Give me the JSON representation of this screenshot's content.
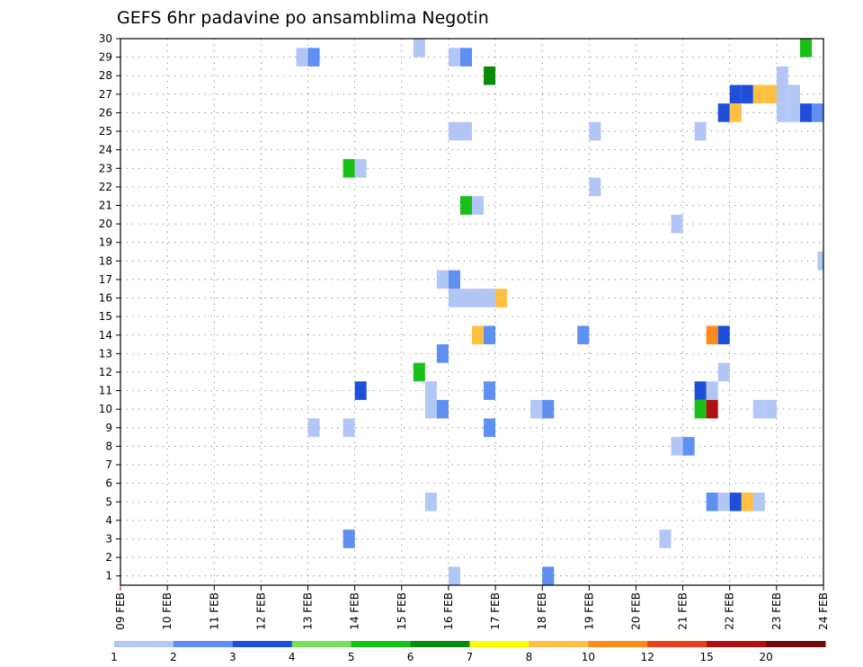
{
  "chart_data": {
    "type": "heatmap",
    "title": "GEFS 6hr padavine po ansamblima Negotin",
    "xlabel": "",
    "ylabel": "",
    "x_ticks": [
      "09 FEB",
      "10 FEB",
      "11 FEB",
      "12 FEB",
      "13 FEB",
      "14 FEB",
      "15 FEB",
      "16 FEB",
      "17 FEB",
      "18 FEB",
      "19 FEB",
      "20 FEB",
      "21 FEB",
      "22 FEB",
      "23 FEB",
      "24 FEB"
    ],
    "x_unit": "days since 09 FEB (6-hourly steps)",
    "xlim": [
      0,
      15
    ],
    "y_ticks": [
      1,
      2,
      3,
      4,
      5,
      6,
      7,
      8,
      9,
      10,
      11,
      12,
      13,
      14,
      15,
      16,
      17,
      18,
      19,
      20,
      21,
      22,
      23,
      24,
      25,
      26,
      27,
      28,
      29,
      30
    ],
    "ylim": [
      0.5,
      30
    ],
    "grid": true,
    "colorbar": {
      "labels": [
        "1",
        "2",
        "3",
        "4",
        "5",
        "6",
        "7",
        "8",
        "10",
        "12",
        "15",
        "20"
      ],
      "colors": [
        "#b3c7f7",
        "#5f8ff0",
        "#1f4fd8",
        "#74e05e",
        "#18c018",
        "#0a8a0a",
        "#ffff00",
        "#ffbf40",
        "#ff8c1a",
        "#e8401a",
        "#b01010",
        "#6e0a0a"
      ]
    },
    "cells": [
      {
        "x": 6.375,
        "y": 30,
        "v": 1
      },
      {
        "x": 14.625,
        "y": 30,
        "v": 5
      },
      {
        "x": 3.875,
        "y": 29,
        "v": 1
      },
      {
        "x": 4.125,
        "y": 29,
        "v": 2
      },
      {
        "x": 7.125,
        "y": 29,
        "v": 1
      },
      {
        "x": 7.375,
        "y": 29,
        "v": 2
      },
      {
        "x": 7.875,
        "y": 28,
        "v": 6
      },
      {
        "x": 14.125,
        "y": 28,
        "v": 1
      },
      {
        "x": 13.125,
        "y": 27,
        "v": 3
      },
      {
        "x": 13.375,
        "y": 27,
        "v": 3
      },
      {
        "x": 13.625,
        "y": 27,
        "v": 8
      },
      {
        "x": 13.875,
        "y": 27,
        "v": 8
      },
      {
        "x": 14.125,
        "y": 27,
        "v": 1
      },
      {
        "x": 14.375,
        "y": 27,
        "v": 1
      },
      {
        "x": 12.875,
        "y": 26,
        "v": 3
      },
      {
        "x": 13.125,
        "y": 26,
        "v": 8
      },
      {
        "x": 14.125,
        "y": 26,
        "v": 1
      },
      {
        "x": 14.375,
        "y": 26,
        "v": 1
      },
      {
        "x": 14.625,
        "y": 26,
        "v": 3
      },
      {
        "x": 14.875,
        "y": 26,
        "v": 2
      },
      {
        "x": 7.125,
        "y": 25,
        "v": 1
      },
      {
        "x": 7.375,
        "y": 25,
        "v": 1
      },
      {
        "x": 10.125,
        "y": 25,
        "v": 1
      },
      {
        "x": 12.375,
        "y": 25,
        "v": 1
      },
      {
        "x": 4.875,
        "y": 23,
        "v": 5
      },
      {
        "x": 5.125,
        "y": 23,
        "v": 1
      },
      {
        "x": 10.125,
        "y": 22,
        "v": 1
      },
      {
        "x": 7.375,
        "y": 21,
        "v": 5
      },
      {
        "x": 7.625,
        "y": 21,
        "v": 1
      },
      {
        "x": 11.875,
        "y": 20,
        "v": 1
      },
      {
        "x": 15.0,
        "y": 18,
        "v": 1
      },
      {
        "x": 6.875,
        "y": 17,
        "v": 1
      },
      {
        "x": 7.125,
        "y": 17,
        "v": 2
      },
      {
        "x": 7.125,
        "y": 16,
        "v": 1
      },
      {
        "x": 7.375,
        "y": 16,
        "v": 1
      },
      {
        "x": 7.625,
        "y": 16,
        "v": 1
      },
      {
        "x": 7.875,
        "y": 16,
        "v": 1
      },
      {
        "x": 8.125,
        "y": 16,
        "v": 8
      },
      {
        "x": 7.625,
        "y": 14,
        "v": 8
      },
      {
        "x": 7.875,
        "y": 14,
        "v": 2
      },
      {
        "x": 9.875,
        "y": 14,
        "v": 2
      },
      {
        "x": 12.625,
        "y": 14,
        "v": 10
      },
      {
        "x": 12.875,
        "y": 14,
        "v": 3
      },
      {
        "x": 6.875,
        "y": 13,
        "v": 2
      },
      {
        "x": 12.875,
        "y": 12,
        "v": 1
      },
      {
        "x": 6.375,
        "y": 12,
        "v": 5
      },
      {
        "x": 5.125,
        "y": 11,
        "v": 3
      },
      {
        "x": 6.625,
        "y": 11,
        "v": 1
      },
      {
        "x": 7.875,
        "y": 11,
        "v": 2
      },
      {
        "x": 12.375,
        "y": 11,
        "v": 3
      },
      {
        "x": 12.625,
        "y": 11,
        "v": 1
      },
      {
        "x": 6.625,
        "y": 10,
        "v": 1
      },
      {
        "x": 6.875,
        "y": 10,
        "v": 2
      },
      {
        "x": 8.875,
        "y": 10,
        "v": 1
      },
      {
        "x": 9.125,
        "y": 10,
        "v": 2
      },
      {
        "x": 12.375,
        "y": 10,
        "v": 5
      },
      {
        "x": 12.625,
        "y": 10,
        "v": 15
      },
      {
        "x": 13.625,
        "y": 10,
        "v": 1
      },
      {
        "x": 13.875,
        "y": 10,
        "v": 1
      },
      {
        "x": 4.125,
        "y": 9,
        "v": 1
      },
      {
        "x": 4.875,
        "y": 9,
        "v": 1
      },
      {
        "x": 7.875,
        "y": 9,
        "v": 2
      },
      {
        "x": 11.875,
        "y": 8,
        "v": 1
      },
      {
        "x": 12.125,
        "y": 8,
        "v": 2
      },
      {
        "x": 6.625,
        "y": 5,
        "v": 1
      },
      {
        "x": 12.625,
        "y": 5,
        "v": 2
      },
      {
        "x": 12.875,
        "y": 5,
        "v": 1
      },
      {
        "x": 13.125,
        "y": 5,
        "v": 3
      },
      {
        "x": 13.375,
        "y": 5,
        "v": 8
      },
      {
        "x": 13.625,
        "y": 5,
        "v": 1
      },
      {
        "x": 4.875,
        "y": 3,
        "v": 2
      },
      {
        "x": 11.625,
        "y": 3,
        "v": 1
      },
      {
        "x": 7.125,
        "y": 1,
        "v": 1
      },
      {
        "x": 9.125,
        "y": 1,
        "v": 2
      }
    ]
  }
}
